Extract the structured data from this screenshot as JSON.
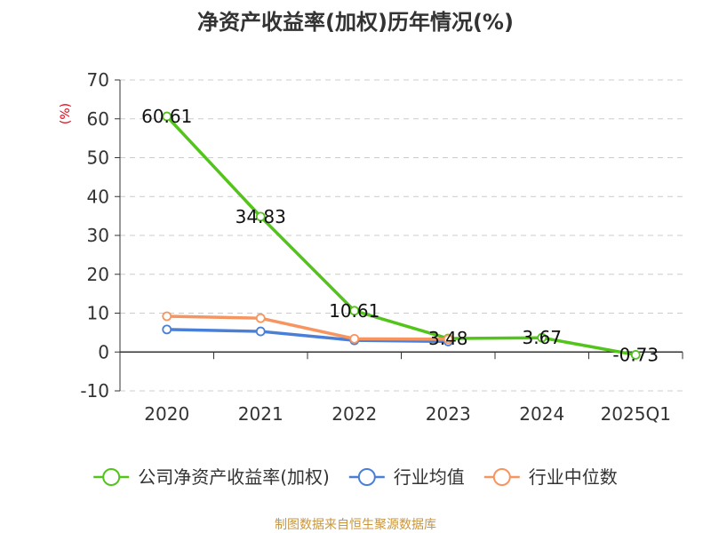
{
  "chart_data": {
    "type": "line",
    "title": "净资产收益率(加权)历年情况(%)",
    "ylabel": "(%)",
    "xlabel": "",
    "categories": [
      "2020",
      "2021",
      "2022",
      "2023",
      "2024",
      "2025Q1"
    ],
    "ylim": [
      -10,
      70
    ],
    "yticks": [
      70,
      60,
      50,
      40,
      30,
      20,
      10,
      0,
      -10
    ],
    "grid": true,
    "legend_position": "bottom",
    "series": [
      {
        "name": "公司净资产收益率(加权)",
        "color": "#52c41a",
        "values": [
          60.61,
          34.83,
          10.61,
          3.48,
          3.67,
          -0.73
        ],
        "labels": [
          "60.61",
          "34.83",
          "10.61",
          "3.48",
          "3.67",
          "-0.73"
        ]
      },
      {
        "name": "行业均值",
        "color": "#4a7fd8",
        "values": [
          5.8,
          5.3,
          3.0,
          2.7,
          null,
          null
        ]
      },
      {
        "name": "行业中位数",
        "color": "#f79560",
        "values": [
          9.2,
          8.7,
          3.4,
          3.3,
          null,
          null
        ]
      }
    ]
  },
  "source": "制图数据来自恒生聚源数据库"
}
